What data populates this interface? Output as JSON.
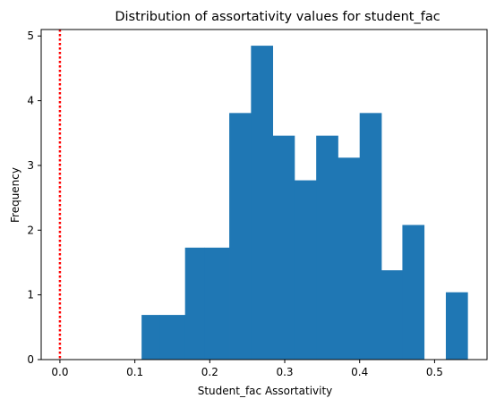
{
  "chart_data": {
    "type": "bar",
    "title": "Distribution of assortativity values for student_fac",
    "xlabel": "Student_fac Assortativity",
    "ylabel": "Frequency",
    "xlim": [
      -0.025,
      0.57
    ],
    "ylim": [
      0,
      5.1
    ],
    "xticks": [
      0.0,
      0.1,
      0.2,
      0.3,
      0.4,
      0.5
    ],
    "xtick_labels": [
      "0.0",
      "0.1",
      "0.2",
      "0.3",
      "0.4",
      "0.5"
    ],
    "yticks": [
      0,
      1,
      2,
      3,
      4,
      5
    ],
    "ytick_labels": [
      "0",
      "1",
      "2",
      "3",
      "4",
      "5"
    ],
    "bins": [
      {
        "x0": 0.109,
        "x1": 0.133,
        "value": 0.69
      },
      {
        "x0": 0.133,
        "x1": 0.167,
        "value": 0.69
      },
      {
        "x0": 0.167,
        "x1": 0.193,
        "value": 1.73
      },
      {
        "x0": 0.193,
        "x1": 0.226,
        "value": 1.73
      },
      {
        "x0": 0.226,
        "x1": 0.255,
        "value": 3.81
      },
      {
        "x0": 0.255,
        "x1": 0.284,
        "value": 4.85
      },
      {
        "x0": 0.284,
        "x1": 0.313,
        "value": 3.46
      },
      {
        "x0": 0.313,
        "x1": 0.342,
        "value": 2.77
      },
      {
        "x0": 0.342,
        "x1": 0.371,
        "value": 3.46
      },
      {
        "x0": 0.371,
        "x1": 0.4,
        "value": 3.12
      },
      {
        "x0": 0.4,
        "x1": 0.429,
        "value": 3.81
      },
      {
        "x0": 0.429,
        "x1": 0.457,
        "value": 1.38
      },
      {
        "x0": 0.457,
        "x1": 0.486,
        "value": 2.08
      },
      {
        "x0": 0.486,
        "x1": 0.515,
        "value": 0.0
      },
      {
        "x0": 0.515,
        "x1": 0.544,
        "value": 1.04
      }
    ],
    "bar_color": "#1f77b4",
    "reference_line": {
      "x": 0.0,
      "style": "dotted",
      "color": "#ff0000"
    },
    "grid": false,
    "legend": "none"
  }
}
